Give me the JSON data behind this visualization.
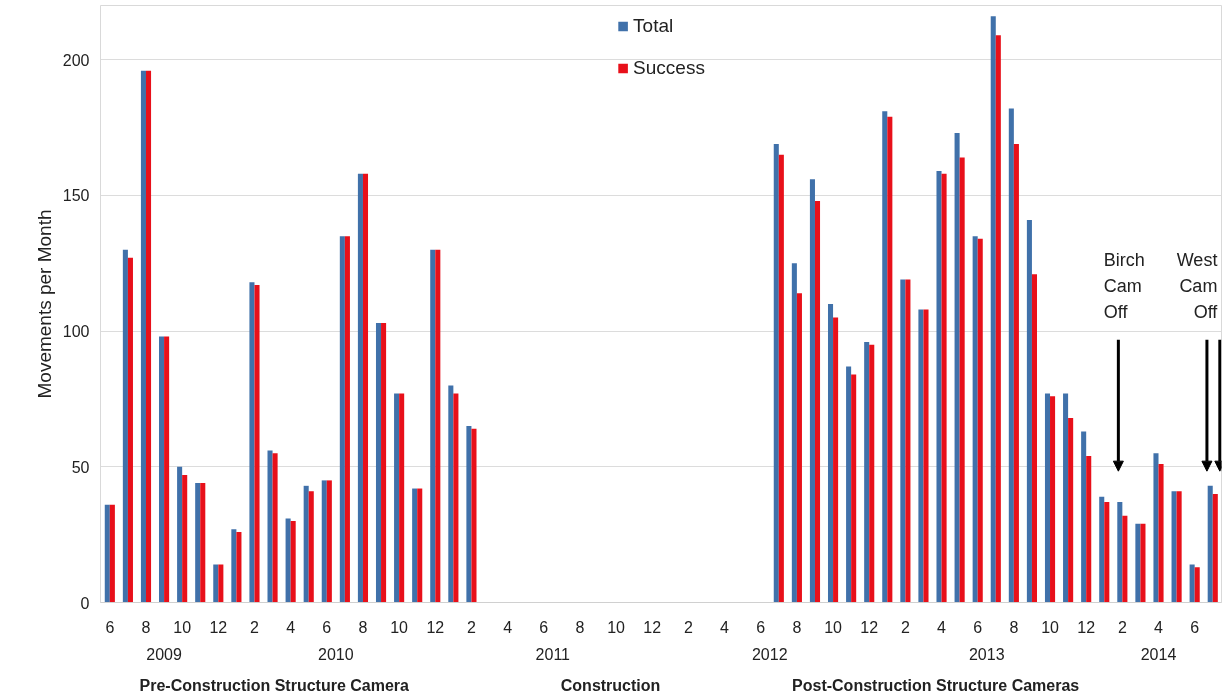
{
  "chart_data": {
    "type": "bar",
    "ylabel": "Movements per Month",
    "x": [
      "2009-06",
      "2009-07",
      "2009-08",
      "2009-09",
      "2009-10",
      "2009-11",
      "2009-12",
      "2010-01",
      "2010-02",
      "2010-03",
      "2010-04",
      "2010-05",
      "2010-06",
      "2010-07",
      "2010-08",
      "2010-09",
      "2010-10",
      "2010-11",
      "2010-12",
      "2011-01",
      "2011-02",
      "2011-03",
      "2011-04",
      "2011-05",
      "2011-06",
      "2011-07",
      "2011-08",
      "2011-09",
      "2011-10",
      "2011-11",
      "2011-12",
      "2012-01",
      "2012-02",
      "2012-03",
      "2012-04",
      "2012-05",
      "2012-06",
      "2012-07",
      "2012-08",
      "2012-09",
      "2012-10",
      "2012-11",
      "2012-12",
      "2013-01",
      "2013-02",
      "2013-03",
      "2013-04",
      "2013-05",
      "2013-06",
      "2013-07",
      "2013-08",
      "2013-09",
      "2013-10",
      "2013-11",
      "2013-12",
      "2014-01",
      "2014-02",
      "2014-03",
      "2014-04",
      "2014-05",
      "2014-06",
      "2014-07"
    ],
    "series": [
      {
        "name": "Total",
        "color": "#4071aa",
        "values": [
          36,
          130,
          196,
          98,
          50,
          44,
          14,
          27,
          118,
          56,
          31,
          43,
          45,
          135,
          158,
          103,
          77,
          42,
          130,
          80,
          65,
          null,
          null,
          null,
          null,
          null,
          null,
          null,
          null,
          null,
          null,
          null,
          null,
          null,
          null,
          null,
          null,
          169,
          125,
          156,
          110,
          87,
          96,
          181,
          119,
          108,
          159,
          173,
          135,
          216,
          182,
          141,
          77,
          77,
          63,
          39,
          37,
          29,
          55,
          41,
          14,
          43
        ]
      },
      {
        "name": "Success",
        "color": "#e8101a",
        "values": [
          36,
          127,
          196,
          98,
          47,
          44,
          14,
          26,
          117,
          55,
          30,
          41,
          45,
          135,
          158,
          103,
          77,
          42,
          130,
          77,
          64,
          null,
          null,
          null,
          null,
          null,
          null,
          null,
          null,
          null,
          null,
          null,
          null,
          null,
          null,
          null,
          null,
          165,
          114,
          148,
          105,
          84,
          95,
          179,
          119,
          108,
          158,
          164,
          134,
          209,
          169,
          121,
          76,
          68,
          54,
          37,
          32,
          29,
          51,
          41,
          13,
          40
        ]
      }
    ],
    "xlim": [
      "2009-05-16",
      "2014-07-16"
    ],
    "xticks": [
      {
        "value": "2009-06",
        "label": "6"
      },
      {
        "value": "2009-08",
        "label": "8"
      },
      {
        "value": "2009-10",
        "label": "10"
      },
      {
        "value": "2009-12",
        "label": "12"
      },
      {
        "value": "2010-02",
        "label": "2"
      },
      {
        "value": "2010-04",
        "label": "4"
      },
      {
        "value": "2010-06",
        "label": "6"
      },
      {
        "value": "2010-08",
        "label": "8"
      },
      {
        "value": "2010-10",
        "label": "10"
      },
      {
        "value": "2010-12",
        "label": "12"
      },
      {
        "value": "2011-02",
        "label": "2"
      },
      {
        "value": "2011-04",
        "label": "4"
      },
      {
        "value": "2011-06",
        "label": "6"
      },
      {
        "value": "2011-08",
        "label": "8"
      },
      {
        "value": "2011-10",
        "label": "10"
      },
      {
        "value": "2011-12",
        "label": "12"
      },
      {
        "value": "2012-02",
        "label": "2"
      },
      {
        "value": "2012-04",
        "label": "4"
      },
      {
        "value": "2012-06",
        "label": "6"
      },
      {
        "value": "2012-08",
        "label": "8"
      },
      {
        "value": "2012-10",
        "label": "10"
      },
      {
        "value": "2012-12",
        "label": "12"
      },
      {
        "value": "2013-02",
        "label": "2"
      },
      {
        "value": "2013-04",
        "label": "4"
      },
      {
        "value": "2013-06",
        "label": "6"
      },
      {
        "value": "2013-08",
        "label": "8"
      },
      {
        "value": "2013-10",
        "label": "10"
      },
      {
        "value": "2013-12",
        "label": "12"
      },
      {
        "value": "2014-02",
        "label": "2"
      },
      {
        "value": "2014-04",
        "label": "4"
      },
      {
        "value": "2014-06",
        "label": "6"
      }
    ],
    "ylim": [
      0,
      220
    ],
    "yticks": [
      0,
      50,
      100,
      150,
      200
    ],
    "grid": "y",
    "legend": "top",
    "annotations": [
      "2009",
      "2010",
      "2011",
      "2012",
      "2013",
      "2014",
      "Pre-Construction Structure Camera",
      "Construction",
      "Post-Construction Structure Cameras",
      "Birch Cam Off",
      "West Cam Off"
    ]
  }
}
